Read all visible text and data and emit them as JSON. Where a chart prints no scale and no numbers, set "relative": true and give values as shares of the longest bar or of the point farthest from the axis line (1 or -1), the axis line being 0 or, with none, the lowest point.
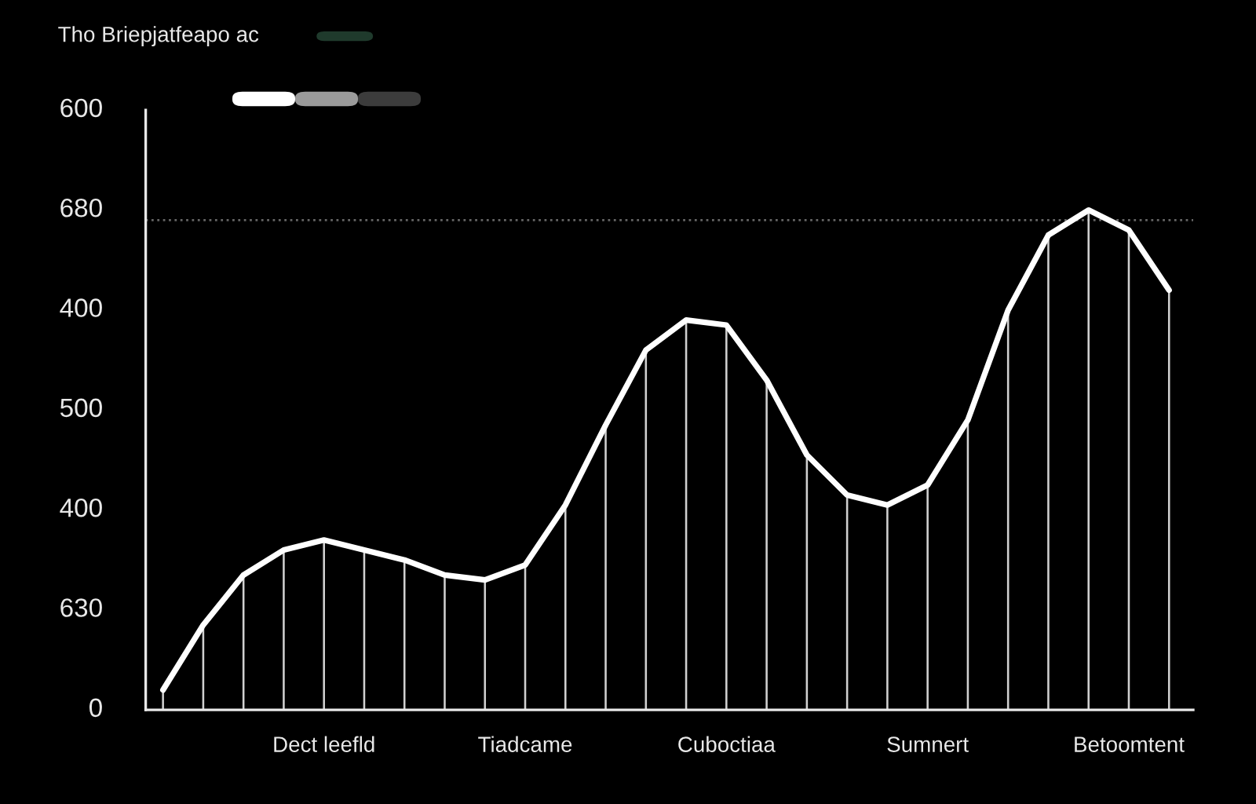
{
  "chart_data": {
    "type": "line",
    "title": "Tho Briepjatfeapo ac",
    "relative": true,
    "categories": [
      null,
      null,
      null,
      null,
      "Dect leefld",
      null,
      null,
      null,
      null,
      "Tiadcame",
      null,
      null,
      null,
      null,
      "Cuboctiaa",
      null,
      null,
      null,
      null,
      "Sumnert",
      null,
      null,
      null,
      null,
      "Betoomtent",
      null
    ],
    "annotations": [
      "0",
      "630",
      "400",
      "500",
      "400",
      "680",
      "600"
    ],
    "grid": false,
    "legend": false,
    "marker": "none",
    "line_style": "solid",
    "ref_lines": [
      {
        "axis": "y",
        "value": 0.98,
        "color": "#666666",
        "line_style": "dotted"
      }
    ],
    "series": [
      {
        "color": "#ffffff",
        "values": [
          0.04,
          0.17,
          0.27,
          0.32,
          0.34,
          0.32,
          0.3,
          0.27,
          0.26,
          0.29,
          0.41,
          0.57,
          0.72,
          0.78,
          0.77,
          0.66,
          0.51,
          0.43,
          0.41,
          0.45,
          0.58,
          0.8,
          0.95,
          1,
          0.96,
          0.84
        ]
      },
      {
        "type": "bar",
        "color": "#d0d0d0",
        "values": [
          0.04,
          0.17,
          0.27,
          0.32,
          0.34,
          0.32,
          0.3,
          0.27,
          0.26,
          0.29,
          0.41,
          0.57,
          0.72,
          0.78,
          0.77,
          0.66,
          0.51,
          0.43,
          0.41,
          0.45,
          0.58,
          0.8,
          0.95,
          1,
          0.96,
          0.84
        ]
      }
    ]
  }
}
